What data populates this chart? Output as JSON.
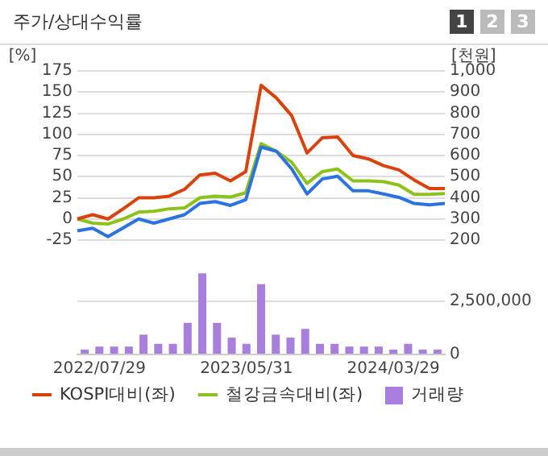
{
  "chart_data": [
    {
      "type": "line",
      "title": "주가/상대수익률",
      "annotations": [
        "1",
        "2",
        "3"
      ],
      "ylabel": "[%]",
      "y2label": "[천원]",
      "categories": [
        null,
        null,
        null,
        null,
        null,
        null,
        null,
        null,
        null,
        null,
        null,
        null,
        null,
        null,
        null,
        null,
        null,
        null,
        null,
        null,
        null,
        null,
        null,
        null,
        null
      ],
      "series": [
        {
          "color": "#2a73e0",
          "axis": "y2",
          "values": [
            244,
            256,
            216,
            258,
            300,
            280,
            300,
            320,
            373,
            382,
            364,
            391,
            640,
            620,
            536,
            418,
            489,
            502,
            433,
            433,
            418,
            402,
            373,
            367,
            373
          ]
        },
        {
          "name": "KOSPI대비(좌)",
          "color": "#d9420b",
          "values": [
            0,
            5,
            0,
            12,
            25,
            25,
            27,
            35,
            52,
            54,
            45,
            56,
            158,
            143,
            122,
            78,
            96,
            97,
            75,
            71,
            63,
            58,
            46,
            36,
            36
          ]
        },
        {
          "name": "철강금속대비(좌)",
          "color": "#8cc21a",
          "values": [
            0,
            -5,
            -6,
            0,
            8,
            9,
            12,
            13,
            25,
            27,
            26,
            31,
            89,
            80,
            67,
            42,
            56,
            59,
            45,
            45,
            44,
            40,
            29,
            29,
            30
          ]
        }
      ],
      "ylim": [
        -25,
        175
      ],
      "yticks": [
        -25,
        0,
        25,
        50,
        75,
        100,
        125,
        150,
        175
      ],
      "y2lim": [
        200,
        1000
      ],
      "y2ticks": [
        200,
        300,
        400,
        500,
        600,
        700,
        800,
        900,
        {
          "value": 1000,
          "label": "1,000"
        }
      ],
      "grid": "y",
      "legend": "bottom",
      "marker": "none",
      "tick_labels": "y"
    },
    {
      "type": "bar",
      "categories": [
        null,
        "2022/07/29",
        null,
        null,
        null,
        null,
        null,
        null,
        null,
        null,
        null,
        "2023/05/31",
        null,
        null,
        null,
        null,
        null,
        null,
        null,
        null,
        null,
        "2024/03/29",
        null,
        null,
        null
      ],
      "series": [
        {
          "name": "거래량",
          "color": "#a87fdc",
          "axis": "y2",
          "values": [
            230000,
            370000,
            370000,
            370000,
            930000,
            500000,
            500000,
            1480000,
            3800000,
            1480000,
            790000,
            500000,
            3290000,
            930000,
            790000,
            1200000,
            500000,
            500000,
            370000,
            370000,
            370000,
            230000,
            500000,
            230000,
            230000
          ]
        }
      ],
      "y2lim": [
        0,
        4000000
      ],
      "y2ticks": [
        0,
        {
          "value": 2500000,
          "label": "2,500,000"
        }
      ],
      "grid": "y",
      "legend": "bottom"
    }
  ]
}
